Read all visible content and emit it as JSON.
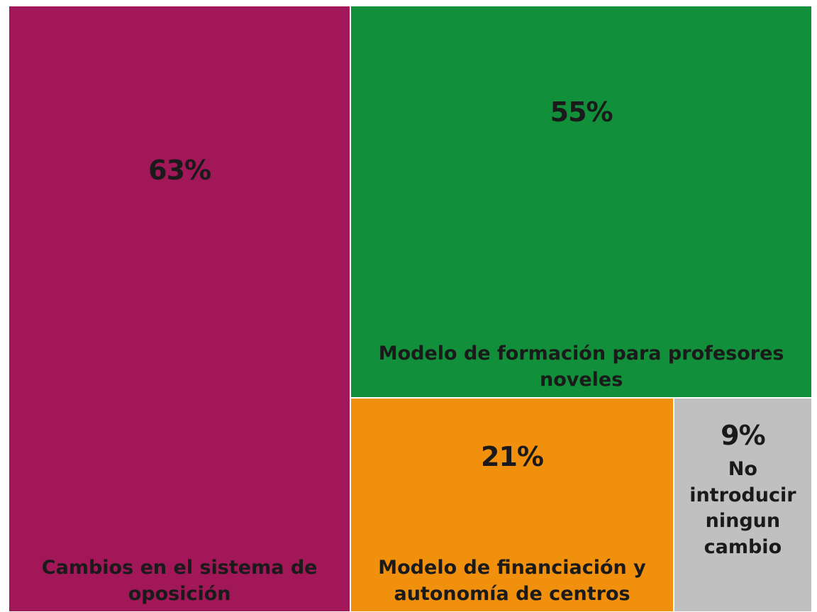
{
  "chart_data": {
    "type": "treemap",
    "categories": [
      "Cambios en el sistema de oposición",
      "Modelo de formación para profesores noveles",
      "Modelo de financiación y autonomía de centros",
      "No introducir ningun cambio"
    ],
    "values": [
      63,
      55,
      21,
      9
    ],
    "value_labels": [
      "63%",
      "55%",
      "21%",
      "9%"
    ],
    "colors": [
      "#a11757",
      "#118f3a",
      "#f0900c",
      "#c0c0c0"
    ]
  }
}
